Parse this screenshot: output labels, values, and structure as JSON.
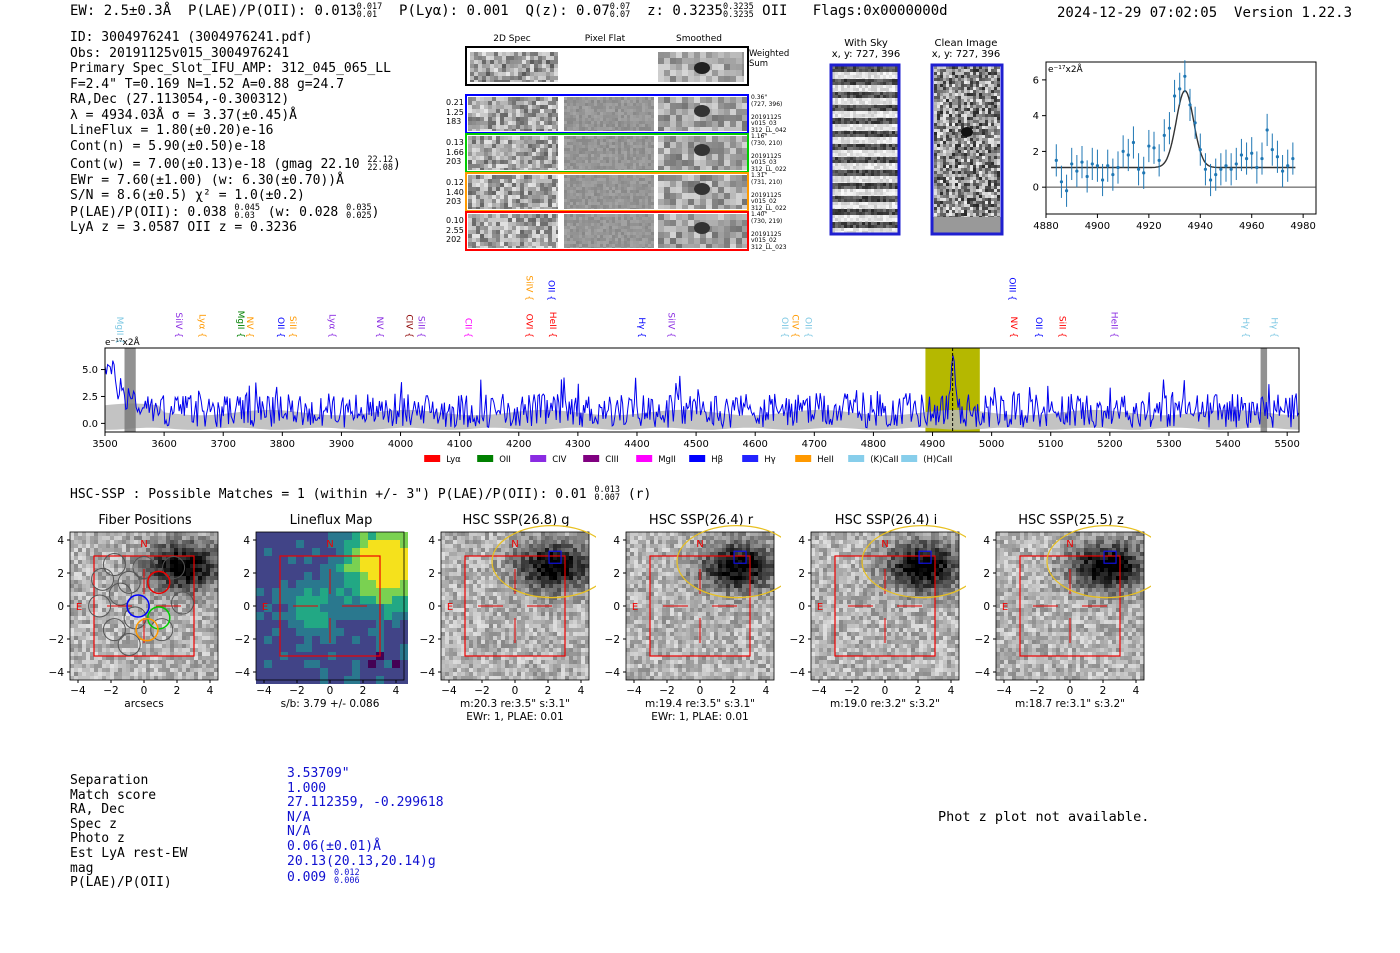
{
  "header": {
    "ew": "EW: 2.5±0.3Å",
    "plae": "P(LAE)/P(OII): 0.013",
    "plae_hi": "0.017",
    "plae_lo": "0.01",
    "plya": "P(Lyα): 0.001",
    "qz": "Q(z): 0.07",
    "qz_hi": "0.07",
    "qz_lo": "0.07",
    "z": "z: 0.3235",
    "z_hi": "0.3235",
    "z_lo": "0.3235",
    "z_line": "OII",
    "flags": "Flags:0x0000000d",
    "timestamp": "2024-12-29 07:02:05",
    "version": "Version 1.22.3"
  },
  "info": {
    "lines": [
      "ID: 3004976241 (3004976241.pdf)",
      "Obs: 20191125v015_3004976241",
      "Primary Spec_Slot_IFU_AMP: 312_045_065_LL",
      "F=2.4\"  T=0.169  N=1.52  A=0.88  g=24.7",
      "RA,Dec (27.113054,-0.300312)",
      "λ = 4934.03Å  σ = 3.37(±0.45)Å",
      "LineFlux = 1.80(±0.20)e-16",
      "Cont(n) = 5.90(±0.50)e-18"
    ],
    "contw": "Cont(w) = 7.00(±0.13)e-18 (gmag 22.10",
    "contw_hi": "22.12",
    "contw_lo": "22.08",
    "ewr": "EWr = 7.60(±1.00) (w: 6.30(±0.70))Å",
    "sn": "S/N = 8.6(±0.5)  χ² = 1.0(±0.2)",
    "plae2": "P(LAE)/P(OII): 0.038",
    "plae2_hi": "0.045",
    "plae2_lo": "0.03",
    "plae2_w": "(w: 0.028",
    "plae2_w_hi": "0.035",
    "plae2_w_lo": "0.025",
    "lya_z": "LyA z = 3.0587  OII z = 0.3236"
  },
  "cutouts": {
    "col_titles": [
      "2D Spec",
      "Pixel Flat",
      "Smoothed"
    ],
    "weighted_label": "Weighted\nSum",
    "rows": [
      {
        "left": "0.21\n1.25\n183",
        "right": "0.36\"\n(727, 396)\n\n20191125\nv015_03\n312_LL_042",
        "color": "#0000ff"
      },
      {
        "left": "0.13\n1.66\n203",
        "right": "1.16\"\n(730, 210)\n\n20191125\nv015_03\n312_LL_022",
        "color": "#00cc00"
      },
      {
        "left": "0.12\n1.40\n203",
        "right": "1.31\"\n(731, 210)\n\n20191125\nv015_02\n312_LL_022",
        "color": "#ff9900"
      },
      {
        "left": "0.10\n2.55\n202",
        "right": "1.40\"\n(730, 219)\n\n20191125\nv015_02\n312_LL_023",
        "color": "#ff0000"
      }
    ]
  },
  "sky": {
    "with_sky_title": "With Sky",
    "with_sky_xy": "x, y: 727, 396",
    "clean_title": "Clean Image",
    "clean_xy": "x, y: 727, 396"
  },
  "zoom_chart": {
    "type": "line",
    "unit_label": "e⁻¹⁷x2Å",
    "xlim": [
      4880,
      4985
    ],
    "ylim": [
      -1.5,
      7
    ],
    "xticks": [
      4880,
      4900,
      4920,
      4940,
      4960,
      4980
    ],
    "yticks": [
      0,
      2,
      4,
      6
    ],
    "fit": {
      "center": 4934.03,
      "sigma": 3.37,
      "amplitude": 4.3,
      "continuum": 1.1
    },
    "points": [
      [
        4884,
        1.5
      ],
      [
        4886,
        0.3
      ],
      [
        4888,
        -0.2
      ],
      [
        4890,
        1.3
      ],
      [
        4892,
        0.9
      ],
      [
        4894,
        1.4
      ],
      [
        4896,
        0.6
      ],
      [
        4898,
        1.3
      ],
      [
        4900,
        1.2
      ],
      [
        4902,
        0.4
      ],
      [
        4904,
        1.2
      ],
      [
        4906,
        0.7
      ],
      [
        4908,
        1.1
      ],
      [
        4910,
        2.0
      ],
      [
        4912,
        1.8
      ],
      [
        4914,
        2.5
      ],
      [
        4916,
        1.0
      ],
      [
        4918,
        0.8
      ],
      [
        4920,
        2.3
      ],
      [
        4922,
        2.2
      ],
      [
        4924,
        1.5
      ],
      [
        4926,
        2.9
      ],
      [
        4928,
        3.3
      ],
      [
        4930,
        5.1
      ],
      [
        4932,
        5.5
      ],
      [
        4934,
        6.2
      ],
      [
        4936,
        4.6
      ],
      [
        4938,
        3.6
      ],
      [
        4940,
        2.1
      ],
      [
        4942,
        1.0
      ],
      [
        4944,
        0.4
      ],
      [
        4946,
        0.7
      ],
      [
        4948,
        1.0
      ],
      [
        4950,
        1.2
      ],
      [
        4952,
        1.0
      ],
      [
        4954,
        1.3
      ],
      [
        4956,
        1.8
      ],
      [
        4958,
        1.6
      ],
      [
        4960,
        1.9
      ],
      [
        4962,
        1.1
      ],
      [
        4964,
        1.6
      ],
      [
        4966,
        3.2
      ],
      [
        4968,
        2.1
      ],
      [
        4970,
        1.7
      ],
      [
        4972,
        0.9
      ],
      [
        4974,
        1.2
      ],
      [
        4976,
        1.6
      ]
    ],
    "err": 0.9
  },
  "spectrum": {
    "type": "line",
    "unit_label": "e⁻¹⁷x2Å",
    "xlim": [
      3500,
      5520
    ],
    "ylim": [
      -0.8,
      7.0
    ],
    "xticks": [
      3500,
      3600,
      3700,
      3800,
      3900,
      4000,
      4100,
      4200,
      4300,
      4400,
      4500,
      4600,
      4700,
      4800,
      4900,
      5000,
      5100,
      5200,
      5300,
      5400,
      5500
    ],
    "yticks": [
      0.0,
      2.5,
      5.0
    ],
    "highlight": {
      "x0": 4888,
      "x1": 4980,
      "center": 4934,
      "color": "#b5b800"
    },
    "masks": [
      [
        3533,
        3552
      ],
      [
        5455,
        5466
      ]
    ],
    "line_labels": [
      {
        "name": "MgII",
        "x": 3515,
        "row": 2,
        "color": "#7ec8e3"
      },
      {
        "name": "SiIV",
        "x": 3615,
        "row": 1,
        "color": "#8a2be2"
      },
      {
        "name": "Lyα",
        "x": 3655,
        "row": 1,
        "color": "#ff9900"
      },
      {
        "name": "MgII",
        "x": 3720,
        "row": 1,
        "color": "#008000"
      },
      {
        "name": "NV",
        "x": 3735,
        "row": 1,
        "color": "#ff9900"
      },
      {
        "name": "OII",
        "x": 3788,
        "row": 1,
        "color": "#0000ff"
      },
      {
        "name": "SiII",
        "x": 3808,
        "row": 1,
        "color": "#ff9900"
      },
      {
        "name": "Lyα",
        "x": 3875,
        "row": 1,
        "color": "#8a2be2"
      },
      {
        "name": "NV",
        "x": 3955,
        "row": 1,
        "color": "#8a2be2"
      },
      {
        "name": "CIV",
        "x": 4005,
        "row": 1,
        "color": "#8b0000"
      },
      {
        "name": "SiII",
        "x": 4025,
        "row": 1,
        "color": "#8a2be2"
      },
      {
        "name": "CII",
        "x": 4105,
        "row": 1,
        "color": "#ff00ff"
      },
      {
        "name": "SiIV",
        "x": 4208,
        "row": 0,
        "color": "#ff9900"
      },
      {
        "name": "OII",
        "x": 4245,
        "row": 0,
        "color": "#0000ff"
      },
      {
        "name": "OVI",
        "x": 4208,
        "row": 1,
        "color": "#ff0000"
      },
      {
        "name": "HeII",
        "x": 4248,
        "row": 1,
        "color": "#ff0000"
      },
      {
        "name": "Hγ",
        "x": 4398,
        "row": 1,
        "color": "#0000ff"
      },
      {
        "name": "SiIV",
        "x": 4448,
        "row": 1,
        "color": "#8a2be2"
      },
      {
        "name": "OII",
        "x": 4640,
        "row": 1,
        "color": "#7ec8e3"
      },
      {
        "name": "CIV",
        "x": 4658,
        "row": 1,
        "color": "#ff9900"
      },
      {
        "name": "OII",
        "x": 4680,
        "row": 1,
        "color": "#7ec8e3"
      },
      {
        "name": "OIII",
        "x": 5025,
        "row": 0,
        "color": "#0000ff"
      },
      {
        "name": "NV",
        "x": 5028,
        "row": 1,
        "color": "#ff0000"
      },
      {
        "name": "OII",
        "x": 5070,
        "row": 1,
        "color": "#0000ff"
      },
      {
        "name": "SiII",
        "x": 5110,
        "row": 1,
        "color": "#ff0000"
      },
      {
        "name": "HeII",
        "x": 5198,
        "row": 1,
        "color": "#8a2be2"
      },
      {
        "name": "Hγ",
        "x": 5420,
        "row": 1,
        "color": "#7ec8e3"
      },
      {
        "name": "Hγ",
        "x": 5468,
        "row": 1,
        "color": "#7ec8e3"
      }
    ],
    "legend": [
      {
        "name": "Lyα",
        "color": "#ff0000"
      },
      {
        "name": "OII",
        "color": "#008000"
      },
      {
        "name": "CIV",
        "color": "#8a2be2"
      },
      {
        "name": "CIII",
        "color": "#800080"
      },
      {
        "name": "MgII",
        "color": "#ff00ff"
      },
      {
        "name": "Hβ",
        "color": "#0000ff"
      },
      {
        "name": "Hγ",
        "color": "#2222ff"
      },
      {
        "name": "HeII",
        "color": "#ff9900"
      },
      {
        "name": "(K)CaII",
        "color": "#87ceeb"
      },
      {
        "name": "(H)CaII",
        "color": "#87ceeb"
      }
    ]
  },
  "hsc": {
    "summary": "HSC-SSP : Possible Matches = 1 (within +/- 3\")  P(LAE)/P(OII): 0.01",
    "summary_hi": "0.013",
    "summary_lo": "0.007",
    "summary_tail": "(r)",
    "axis_ticks": [
      "4",
      "2",
      "0",
      "−2",
      "−4"
    ],
    "x_ticks": [
      "−4",
      "−2",
      "0",
      "2",
      "4"
    ],
    "compass_n": "N",
    "compass_e": "E",
    "panels": [
      {
        "title": "Fiber Positions",
        "xlabel": "arcsecs",
        "kind": "fiber",
        "caption1": "",
        "caption2": ""
      },
      {
        "title": "Lineflux Map",
        "xlabel": "s/b: 3.79 +/- 0.086",
        "kind": "lineflux",
        "caption1": "",
        "caption2": ""
      },
      {
        "title": "HSC SSP(26.8) g",
        "xlabel": "m:20.3  re:3.5\"  s:3.1\"",
        "kind": "hsc",
        "caption2": "EWr: 1, PLAE: 0.01"
      },
      {
        "title": "HSC SSP(26.4) r",
        "xlabel": "m:19.4  re:3.5\"  s:3.1\"",
        "kind": "hsc",
        "caption2": "EWr: 1, PLAE: 0.01"
      },
      {
        "title": "HSC SSP(26.4) i",
        "xlabel": "m:19.0  re:3.2\"  s:3.2\"",
        "kind": "hsc",
        "caption2": ""
      },
      {
        "title": "HSC SSP(25.5) z",
        "xlabel": "m:18.7  re:3.1\"  s:3.2\"",
        "kind": "hsc",
        "caption2": ""
      }
    ]
  },
  "match": {
    "labels": [
      "Separation",
      "Match score",
      "RA, Dec",
      "Spec z",
      "Photo z",
      "Est LyA rest-EW",
      "mag",
      "P(LAE)/P(OII)"
    ],
    "values": [
      "3.53709\"",
      "1.000",
      "27.112359, -0.299618",
      "N/A",
      "N/A",
      "0.06(±0.01)Å",
      "20.13(20.13,20.14)g",
      "0.009"
    ],
    "plae_hi": "0.012",
    "plae_lo": "0.006",
    "photz_msg": "Phot z plot not available."
  }
}
